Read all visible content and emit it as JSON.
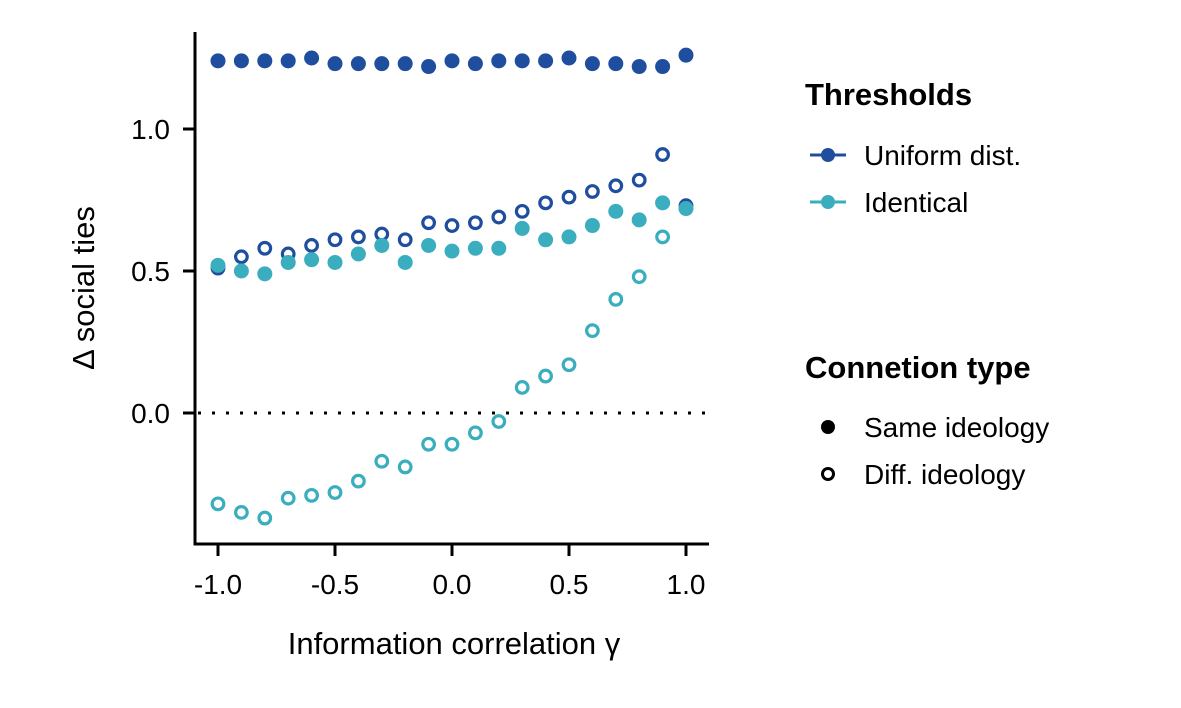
{
  "chart_data": {
    "type": "scatter",
    "title": "",
    "xlabel": "Information correlation γ",
    "ylabel": "Δ social ties",
    "xlim": [
      -1.1,
      1.1
    ],
    "ylim": [
      -0.46,
      1.35
    ],
    "x_ticks": [
      -1.0,
      -0.5,
      0.0,
      0.5,
      1.0
    ],
    "x_tick_labels": [
      "-1.0",
      "-0.5",
      "0.0",
      "0.5",
      "1.0"
    ],
    "y_ticks": [
      0.0,
      0.5,
      1.0
    ],
    "y_tick_labels": [
      "0.0",
      "0.5",
      "1.0"
    ],
    "reference_line": {
      "y": 0.0,
      "style": "dotted"
    },
    "grid": false,
    "legend_placement": "right",
    "colors": {
      "uniform": "#1f4e9e",
      "identical": "#3aaebe"
    },
    "x": [
      -1.0,
      -0.9,
      -0.8,
      -0.7,
      -0.6,
      -0.5,
      -0.4,
      -0.3,
      -0.2,
      -0.1,
      0.0,
      0.1,
      0.2,
      0.3,
      0.4,
      0.5,
      0.6,
      0.7,
      0.8,
      0.9,
      1.0
    ],
    "series": [
      {
        "threshold": "Uniform dist.",
        "connection": "Same ideology",
        "color": "#1f4e9e",
        "marker": "filled",
        "values": [
          1.24,
          1.24,
          1.24,
          1.24,
          1.25,
          1.23,
          1.23,
          1.23,
          1.23,
          1.22,
          1.24,
          1.23,
          1.24,
          1.24,
          1.24,
          1.25,
          1.23,
          1.23,
          1.22,
          1.22,
          1.26
        ]
      },
      {
        "threshold": "Uniform dist.",
        "connection": "Diff. ideology",
        "color": "#1f4e9e",
        "marker": "open",
        "values": [
          0.51,
          0.55,
          0.58,
          0.56,
          0.59,
          0.61,
          0.62,
          0.63,
          0.61,
          0.67,
          0.66,
          0.67,
          0.69,
          0.71,
          0.74,
          0.76,
          0.78,
          0.8,
          0.82,
          0.91,
          0.73
        ]
      },
      {
        "threshold": "Identical",
        "connection": "Same ideology",
        "color": "#3aaebe",
        "marker": "filled",
        "values": [
          0.52,
          0.5,
          0.49,
          0.53,
          0.54,
          0.53,
          0.56,
          0.59,
          0.53,
          0.59,
          0.57,
          0.58,
          0.58,
          0.65,
          0.61,
          0.62,
          0.66,
          0.71,
          0.68,
          0.74,
          0.72
        ]
      },
      {
        "threshold": "Identical",
        "connection": "Diff. ideology",
        "color": "#3aaebe",
        "marker": "open",
        "values": [
          -0.32,
          -0.35,
          -0.37,
          -0.3,
          -0.29,
          -0.28,
          -0.24,
          -0.17,
          -0.19,
          -0.11,
          -0.11,
          -0.07,
          -0.03,
          0.09,
          0.13,
          0.17,
          0.29,
          0.4,
          0.48,
          0.62,
          null
        ]
      }
    ],
    "legend": {
      "thresholds": {
        "title": "Thresholds",
        "items": [
          {
            "label": "Uniform dist.",
            "color": "#1f4e9e"
          },
          {
            "label": "Identical",
            "color": "#3aaebe"
          }
        ]
      },
      "connection": {
        "title": "Connetion type",
        "items": [
          {
            "label": "Same ideology",
            "marker": "filled"
          },
          {
            "label": "Diff. ideology",
            "marker": "open"
          }
        ]
      }
    }
  }
}
